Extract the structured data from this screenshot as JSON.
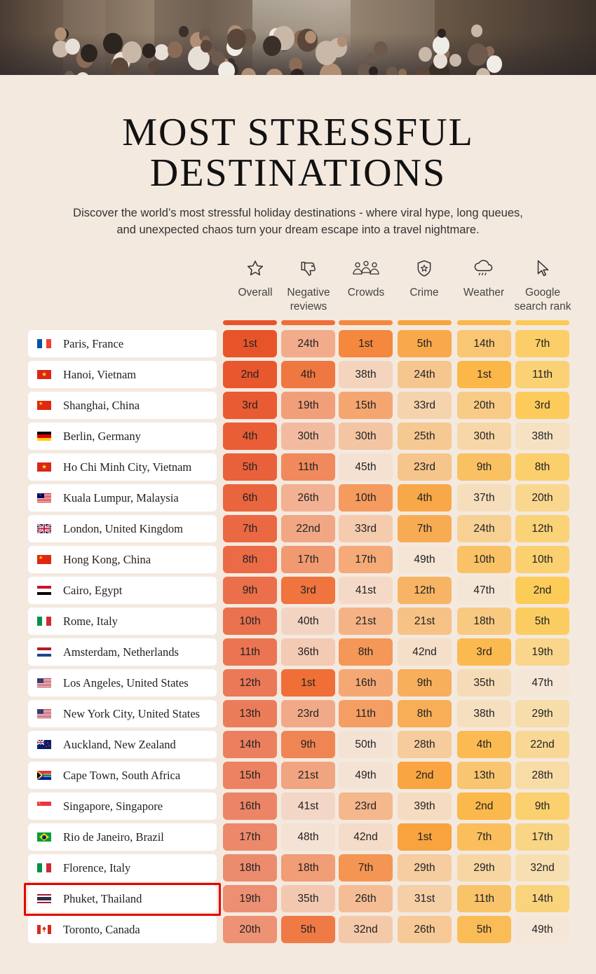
{
  "title_line1": "MOST STRESSFUL",
  "title_line2": "DESTINATIONS",
  "subtitle_line1": "Discover the world’s most stressful holiday destinations - where viral hype, long queues,",
  "subtitle_line2": "and unexpected chaos turn your dream escape into a travel nightmare.",
  "columns": [
    {
      "key": "overall",
      "line1": "Overall",
      "line2": "",
      "icon": "star-icon",
      "color": "#e8542a"
    },
    {
      "key": "negative",
      "line1": "Negative",
      "line2": "reviews",
      "icon": "thumbs-down-icon",
      "color": "#ef6f36"
    },
    {
      "key": "crowds",
      "line1": "Crowds",
      "line2": "",
      "icon": "crowd-icon",
      "color": "#f5883f"
    },
    {
      "key": "crime",
      "line1": "Crime",
      "line2": "",
      "icon": "police-badge-icon",
      "color": "#f8a33e"
    },
    {
      "key": "weather",
      "line1": "Weather",
      "line2": "",
      "icon": "rain-cloud-icon",
      "color": "#fbb848"
    },
    {
      "key": "google",
      "line1": "Google",
      "line2": "search rank",
      "icon": "cursor-icon",
      "color": "#fcca55"
    }
  ],
  "chart_data": {
    "type": "table",
    "title": "MOST STRESSFUL DESTINATIONS",
    "columns": [
      "Overall",
      "Negative reviews",
      "Crowds",
      "Crime",
      "Weather",
      "Google search rank"
    ],
    "rows": [
      {
        "city": "Paris, France",
        "flag": "fr",
        "ranks": [
          1,
          24,
          1,
          5,
          14,
          7
        ],
        "labels": [
          "1st",
          "24th",
          "1st",
          "5th",
          "14th",
          "7th"
        ]
      },
      {
        "city": "Hanoi, Vietnam",
        "flag": "vn",
        "ranks": [
          2,
          4,
          38,
          24,
          1,
          11
        ],
        "labels": [
          "2nd",
          "4th",
          "38th",
          "24th",
          "1st",
          "11th"
        ]
      },
      {
        "city": "Shanghai, China",
        "flag": "cn",
        "ranks": [
          3,
          19,
          15,
          33,
          20,
          3
        ],
        "labels": [
          "3rd",
          "19th",
          "15th",
          "33rd",
          "20th",
          "3rd"
        ]
      },
      {
        "city": "Berlin, Germany",
        "flag": "de",
        "ranks": [
          4,
          30,
          30,
          25,
          30,
          38
        ],
        "labels": [
          "4th",
          "30th",
          "30th",
          "25th",
          "30th",
          "38th"
        ]
      },
      {
        "city": "Ho Chi Minh City, Vietnam",
        "flag": "vn",
        "ranks": [
          5,
          11,
          45,
          23,
          9,
          8
        ],
        "labels": [
          "5th",
          "11th",
          "45th",
          "23rd",
          "9th",
          "8th"
        ]
      },
      {
        "city": "Kuala Lumpur, Malaysia",
        "flag": "my",
        "ranks": [
          6,
          26,
          10,
          4,
          37,
          20
        ],
        "labels": [
          "6th",
          "26th",
          "10th",
          "4th",
          "37th",
          "20th"
        ]
      },
      {
        "city": "London, United Kingdom",
        "flag": "gb",
        "ranks": [
          7,
          22,
          33,
          7,
          24,
          12
        ],
        "labels": [
          "7th",
          "22nd",
          "33rd",
          "7th",
          "24th",
          "12th"
        ]
      },
      {
        "city": "Hong Kong, China",
        "flag": "cn",
        "ranks": [
          8,
          17,
          17,
          49,
          10,
          10
        ],
        "labels": [
          "8th",
          "17th",
          "17th",
          "49th",
          "10th",
          "10th"
        ]
      },
      {
        "city": "Cairo, Egypt",
        "flag": "eg",
        "ranks": [
          9,
          3,
          41,
          12,
          47,
          2
        ],
        "labels": [
          "9th",
          "3rd",
          "41st",
          "12th",
          "47th",
          "2nd"
        ]
      },
      {
        "city": "Rome, Italy",
        "flag": "it",
        "ranks": [
          10,
          40,
          21,
          21,
          18,
          5
        ],
        "labels": [
          "10th",
          "40th",
          "21st",
          "21st",
          "18th",
          "5th"
        ]
      },
      {
        "city": "Amsterdam, Netherlands",
        "flag": "nl",
        "ranks": [
          11,
          36,
          8,
          42,
          3,
          19
        ],
        "labels": [
          "11th",
          "36th",
          "8th",
          "42nd",
          "3rd",
          "19th"
        ]
      },
      {
        "city": "Los Angeles, United States",
        "flag": "us",
        "ranks": [
          12,
          1,
          16,
          9,
          35,
          47
        ],
        "labels": [
          "12th",
          "1st",
          "16th",
          "9th",
          "35th",
          "47th"
        ]
      },
      {
        "city": "New York City, United States",
        "flag": "us",
        "ranks": [
          13,
          23,
          11,
          8,
          38,
          29
        ],
        "labels": [
          "13th",
          "23rd",
          "11th",
          "8th",
          "38th",
          "29th"
        ]
      },
      {
        "city": "Auckland, New Zealand",
        "flag": "nz",
        "ranks": [
          14,
          9,
          50,
          28,
          4,
          22
        ],
        "labels": [
          "14th",
          "9th",
          "50th",
          "28th",
          "4th",
          "22nd"
        ]
      },
      {
        "city": "Cape Town, South Africa",
        "flag": "za",
        "ranks": [
          15,
          21,
          49,
          2,
          13,
          28
        ],
        "labels": [
          "15th",
          "21st",
          "49th",
          "2nd",
          "13th",
          "28th"
        ]
      },
      {
        "city": "Singapore, Singapore",
        "flag": "sg",
        "ranks": [
          16,
          41,
          23,
          39,
          2,
          9
        ],
        "labels": [
          "16th",
          "41st",
          "23rd",
          "39th",
          "2nd",
          "9th"
        ]
      },
      {
        "city": "Rio de Janeiro, Brazil",
        "flag": "br",
        "ranks": [
          17,
          48,
          42,
          1,
          7,
          17
        ],
        "labels": [
          "17th",
          "48th",
          "42nd",
          "1st",
          "7th",
          "17th"
        ]
      },
      {
        "city": "Florence, Italy",
        "flag": "it",
        "ranks": [
          18,
          18,
          7,
          29,
          29,
          32
        ],
        "labels": [
          "18th",
          "18th",
          "7th",
          "29th",
          "29th",
          "32nd"
        ]
      },
      {
        "city": "Phuket, Thailand",
        "flag": "th",
        "ranks": [
          19,
          35,
          26,
          31,
          11,
          14
        ],
        "labels": [
          "19th",
          "35th",
          "26th",
          "31st",
          "11th",
          "14th"
        ],
        "highlighted": true
      },
      {
        "city": "Toronto, Canada",
        "flag": "ca",
        "ranks": [
          20,
          5,
          32,
          26,
          5,
          49
        ],
        "labels": [
          "20th",
          "5th",
          "32nd",
          "26th",
          "5th",
          "49th"
        ]
      }
    ]
  }
}
